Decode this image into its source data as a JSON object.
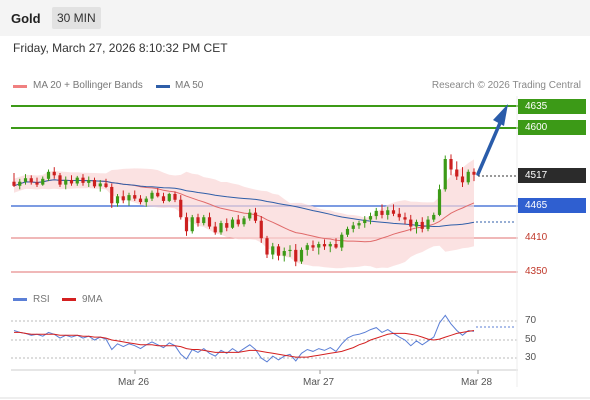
{
  "header": {
    "symbol": "Gold",
    "timeframe": "30 MIN"
  },
  "datetime": "Friday, March 27, 2026 8:10:32 PM CET",
  "legend": {
    "ma20": {
      "label": "MA 20 + Bollinger Bands",
      "color": "#f08080"
    },
    "ma50": {
      "label": "MA 50",
      "color": "#2f5ea8"
    }
  },
  "credit": "Research © 2026 Trading Central",
  "levels": {
    "resistance2": "4635",
    "resistance1": "4600",
    "last": "4517",
    "pivot": "4465",
    "support1": "4410",
    "support2": "4350"
  },
  "rsi_legend": {
    "rsi": "RSI",
    "ma9": "9MA"
  },
  "rsi_levels": [
    "70",
    "50",
    "30"
  ],
  "x_labels": [
    "Mar 26",
    "Mar 27",
    "Mar 28"
  ],
  "colors": {
    "resistance": "#3c9a17",
    "pivot": "#2f5fd0",
    "support": "#e07070",
    "up": "#3c9a17",
    "down": "#cc1f1f",
    "rsi": "#5b7fd6",
    "rsi_ma": "#d42020"
  },
  "chart_data": {
    "type": "candlestick",
    "y_range": [
      4340,
      4660
    ],
    "ohlc": [
      [
        4505,
        4520,
        4496,
        4498
      ],
      [
        4498,
        4510,
        4492,
        4505
      ],
      [
        4505,
        4518,
        4500,
        4511
      ],
      [
        4511,
        4516,
        4500,
        4504
      ],
      [
        4504,
        4512,
        4496,
        4500
      ],
      [
        4500,
        4514,
        4498,
        4510
      ],
      [
        4510,
        4526,
        4506,
        4522
      ],
      [
        4522,
        4530,
        4510,
        4516
      ],
      [
        4516,
        4520,
        4496,
        4500
      ],
      [
        4500,
        4514,
        4492,
        4508
      ],
      [
        4508,
        4516,
        4498,
        4502
      ],
      [
        4502,
        4515,
        4498,
        4512
      ],
      [
        4512,
        4518,
        4498,
        4503
      ],
      [
        4503,
        4514,
        4496,
        4508
      ],
      [
        4508,
        4512,
        4494,
        4497
      ],
      [
        4497,
        4508,
        4488,
        4502
      ],
      [
        4502,
        4510,
        4494,
        4496
      ],
      [
        4496,
        4502,
        4460,
        4468
      ],
      [
        4468,
        4484,
        4462,
        4480
      ],
      [
        4480,
        4490,
        4468,
        4473
      ],
      [
        4473,
        4486,
        4464,
        4482
      ],
      [
        4482,
        4490,
        4472,
        4476
      ],
      [
        4476,
        4482,
        4466,
        4470
      ],
      [
        4470,
        4480,
        4462,
        4476
      ],
      [
        4476,
        4490,
        4472,
        4486
      ],
      [
        4486,
        4494,
        4478,
        4480
      ],
      [
        4480,
        4486,
        4468,
        4472
      ],
      [
        4472,
        4486,
        4470,
        4484
      ],
      [
        4484,
        4488,
        4470,
        4474
      ],
      [
        4474,
        4482,
        4440,
        4444
      ],
      [
        4444,
        4452,
        4412,
        4420
      ],
      [
        4420,
        4448,
        4416,
        4444
      ],
      [
        4444,
        4450,
        4428,
        4434
      ],
      [
        4434,
        4448,
        4430,
        4444
      ],
      [
        4444,
        4452,
        4424,
        4428
      ],
      [
        4428,
        4436,
        4414,
        4418
      ],
      [
        4418,
        4438,
        4414,
        4434
      ],
      [
        4434,
        4442,
        4420,
        4426
      ],
      [
        4426,
        4444,
        4424,
        4440
      ],
      [
        4440,
        4448,
        4428,
        4432
      ],
      [
        4432,
        4446,
        4428,
        4442
      ],
      [
        4442,
        4458,
        4438,
        4452
      ],
      [
        4452,
        4460,
        4434,
        4438
      ],
      [
        4438,
        4446,
        4400,
        4408
      ],
      [
        4408,
        4412,
        4374,
        4380
      ],
      [
        4380,
        4400,
        4372,
        4394
      ],
      [
        4394,
        4398,
        4370,
        4378
      ],
      [
        4378,
        4392,
        4368,
        4386
      ],
      [
        4386,
        4396,
        4376,
        4388
      ],
      [
        4388,
        4398,
        4360,
        4368
      ],
      [
        4368,
        4392,
        4364,
        4388
      ],
      [
        4388,
        4400,
        4378,
        4396
      ],
      [
        4396,
        4404,
        4386,
        4392
      ],
      [
        4392,
        4402,
        4380,
        4398
      ],
      [
        4398,
        4406,
        4388,
        4394
      ],
      [
        4394,
        4402,
        4384,
        4398
      ],
      [
        4398,
        4408,
        4390,
        4392
      ],
      [
        4392,
        4418,
        4386,
        4414
      ],
      [
        4414,
        4428,
        4410,
        4424
      ],
      [
        4424,
        4436,
        4418,
        4430
      ],
      [
        4430,
        4438,
        4424,
        4434
      ],
      [
        4434,
        4446,
        4426,
        4440
      ],
      [
        4440,
        4452,
        4432,
        4446
      ],
      [
        4446,
        4460,
        4440,
        4455
      ],
      [
        4455,
        4466,
        4442,
        4448
      ],
      [
        4448,
        4462,
        4440,
        4456
      ],
      [
        4456,
        4466,
        4446,
        4450
      ],
      [
        4450,
        4460,
        4438,
        4444
      ],
      [
        4444,
        4452,
        4432,
        4440
      ],
      [
        4440,
        4448,
        4420,
        4428
      ],
      [
        4428,
        4440,
        4416,
        4436
      ],
      [
        4436,
        4444,
        4418,
        4424
      ],
      [
        4424,
        4446,
        4420,
        4440
      ],
      [
        4440,
        4452,
        4436,
        4448
      ],
      [
        4448,
        4500,
        4446,
        4492
      ],
      [
        4492,
        4550,
        4488,
        4544
      ],
      [
        4544,
        4552,
        4516,
        4526
      ],
      [
        4526,
        4540,
        4508,
        4514
      ],
      [
        4514,
        4530,
        4496,
        4504
      ],
      [
        4504,
        4526,
        4500,
        4522
      ],
      [
        4522,
        4528,
        4506,
        4517
      ]
    ],
    "rsi": [
      60,
      58,
      57,
      55,
      56,
      54,
      58,
      56,
      52,
      55,
      53,
      55,
      52,
      54,
      50,
      53,
      51,
      40,
      46,
      43,
      46,
      44,
      41,
      45,
      48,
      45,
      42,
      47,
      44,
      35,
      30,
      40,
      37,
      41,
      36,
      33,
      39,
      36,
      41,
      37,
      41,
      45,
      40,
      31,
      27,
      33,
      29,
      33,
      35,
      28,
      36,
      40,
      38,
      41,
      39,
      42,
      38,
      46,
      52,
      55,
      56,
      58,
      61,
      63,
      58,
      61,
      57,
      53,
      50,
      44,
      49,
      45,
      49,
      53,
      68,
      76,
      67,
      60,
      55,
      60,
      59
    ],
    "rsi_ma": [
      58,
      58,
      57,
      56,
      56,
      56,
      56,
      56,
      55,
      55,
      55,
      55,
      54,
      54,
      53,
      53,
      52,
      50,
      49,
      48,
      47,
      46,
      45,
      45,
      45,
      44,
      44,
      44,
      44,
      43,
      41,
      40,
      40,
      39,
      38,
      37,
      37,
      37,
      37,
      37,
      38,
      39,
      39,
      38,
      37,
      36,
      35,
      34,
      33,
      32,
      32,
      32,
      33,
      34,
      35,
      36,
      37,
      38,
      40,
      42,
      45,
      47,
      50,
      52,
      54,
      56,
      57,
      57,
      57,
      56,
      55,
      53,
      51,
      50,
      51,
      53,
      55,
      57,
      58,
      59,
      60
    ]
  }
}
